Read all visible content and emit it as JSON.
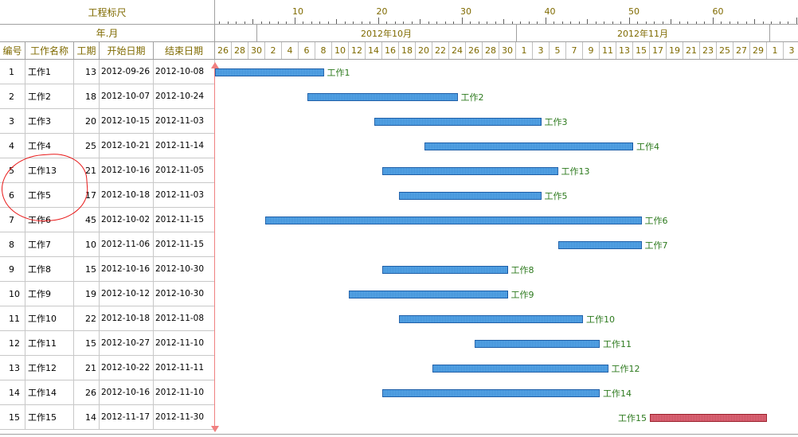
{
  "header": {
    "ruler_title": "工程标尺",
    "year_month": "年.月",
    "columns": {
      "idx": "编号",
      "name": "工作名称",
      "dur": "工期",
      "start": "开始日期",
      "end": "结束日期"
    }
  },
  "ruler_numbers": [
    "10",
    "20",
    "30",
    "40",
    "50",
    "60"
  ],
  "months": [
    "2012年10月",
    "2012年11月"
  ],
  "days": [
    "26",
    "28",
    "30",
    "2",
    "4",
    "6",
    "8",
    "10",
    "12",
    "14",
    "16",
    "18",
    "20",
    "22",
    "24",
    "26",
    "28",
    "30",
    "1",
    "3",
    "5",
    "7",
    "9",
    "11",
    "13",
    "15",
    "17",
    "19",
    "21",
    "23",
    "25",
    "27",
    "29",
    "1",
    "3"
  ],
  "tasks": [
    {
      "idx": "1",
      "name": "工作1",
      "dur": "13",
      "start": "2012-09-26",
      "end": "2012-10-08",
      "offset": 0,
      "days": 13,
      "color": "blue",
      "label_side": "right"
    },
    {
      "idx": "2",
      "name": "工作2",
      "dur": "18",
      "start": "2012-10-07",
      "end": "2012-10-24",
      "offset": 11,
      "days": 18,
      "color": "blue",
      "label_side": "right"
    },
    {
      "idx": "3",
      "name": "工作3",
      "dur": "20",
      "start": "2012-10-15",
      "end": "2012-11-03",
      "offset": 19,
      "days": 20,
      "color": "blue",
      "label_side": "right"
    },
    {
      "idx": "4",
      "name": "工作4",
      "dur": "25",
      "start": "2012-10-21",
      "end": "2012-11-14",
      "offset": 25,
      "days": 25,
      "color": "blue",
      "label_side": "right"
    },
    {
      "idx": "5",
      "name": "工作13",
      "dur": "21",
      "start": "2012-10-16",
      "end": "2012-11-05",
      "offset": 20,
      "days": 21,
      "color": "blue",
      "label_side": "right"
    },
    {
      "idx": "6",
      "name": "工作5",
      "dur": "17",
      "start": "2012-10-18",
      "end": "2012-11-03",
      "offset": 22,
      "days": 17,
      "color": "blue",
      "label_side": "right"
    },
    {
      "idx": "7",
      "name": "工作6",
      "dur": "45",
      "start": "2012-10-02",
      "end": "2012-11-15",
      "offset": 6,
      "days": 45,
      "color": "blue",
      "label_side": "right"
    },
    {
      "idx": "8",
      "name": "工作7",
      "dur": "10",
      "start": "2012-11-06",
      "end": "2012-11-15",
      "offset": 41,
      "days": 10,
      "color": "blue",
      "label_side": "right"
    },
    {
      "idx": "9",
      "name": "工作8",
      "dur": "15",
      "start": "2012-10-16",
      "end": "2012-10-30",
      "offset": 20,
      "days": 15,
      "color": "blue",
      "label_side": "right"
    },
    {
      "idx": "10",
      "name": "工作9",
      "dur": "19",
      "start": "2012-10-12",
      "end": "2012-10-30",
      "offset": 16,
      "days": 19,
      "color": "blue",
      "label_side": "right"
    },
    {
      "idx": "11",
      "name": "工作10",
      "dur": "22",
      "start": "2012-10-18",
      "end": "2012-11-08",
      "offset": 22,
      "days": 22,
      "color": "blue",
      "label_side": "right"
    },
    {
      "idx": "12",
      "name": "工作11",
      "dur": "15",
      "start": "2012-10-27",
      "end": "2012-11-10",
      "offset": 31,
      "days": 15,
      "color": "blue",
      "label_side": "right"
    },
    {
      "idx": "13",
      "name": "工作12",
      "dur": "21",
      "start": "2012-10-22",
      "end": "2012-11-11",
      "offset": 26,
      "days": 21,
      "color": "blue",
      "label_side": "right"
    },
    {
      "idx": "14",
      "name": "工作14",
      "dur": "26",
      "start": "2012-10-16",
      "end": "2012-11-10",
      "offset": 20,
      "days": 26,
      "color": "blue",
      "label_side": "right"
    },
    {
      "idx": "15",
      "name": "工作15",
      "dur": "14",
      "start": "2012-11-17",
      "end": "2012-11-30",
      "offset": 52,
      "days": 14,
      "color": "red",
      "label_side": "left"
    }
  ],
  "colors": {
    "bar_blue": "#3f8fd6",
    "bar_red": "#c84a5a",
    "label_green": "#2d7a1e",
    "header_text": "#7f6a00",
    "annotation": "#e81818"
  }
}
